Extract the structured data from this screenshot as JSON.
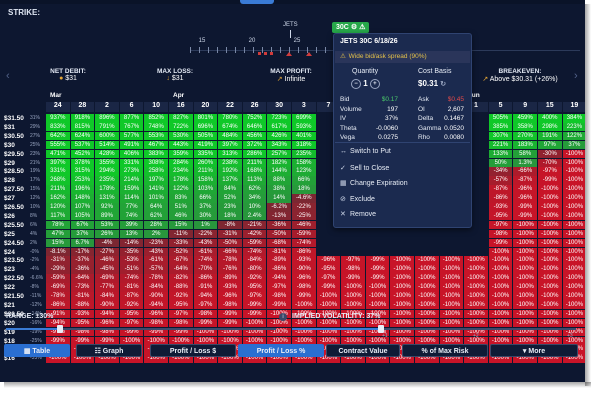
{
  "strike_label": "STRIKE:",
  "ticker": "JETS",
  "badge": "30C",
  "axis_ticks": [
    "15",
    "20",
    "25",
    "30",
    "35"
  ],
  "summary": {
    "net_debit": {
      "label": "NET DEBIT:",
      "value": "$31"
    },
    "max_loss": {
      "label": "MAX LOSS:",
      "value": "$31"
    },
    "max_profit": {
      "label": "MAX PROFIT:",
      "value": "Infinite"
    },
    "breakeven": {
      "label": "BREAKEVEN:",
      "value": "Above $30.31 (+26%)"
    }
  },
  "months": [
    {
      "name": "Mar",
      "col": 0
    },
    {
      "name": "Apr",
      "col": 5
    },
    {
      "name": "Jun",
      "col": 17
    }
  ],
  "days": [
    "24",
    "28",
    "2",
    "6",
    "10",
    "16",
    "20",
    "22",
    "26",
    "30",
    "3",
    "7",
    "11",
    "15",
    "19",
    "23",
    "27",
    "1",
    "5",
    "9",
    "15",
    "19"
  ],
  "rows": [
    {
      "price": "$31.50",
      "pct": "31%",
      "cells": [
        "937%",
        "918%",
        "896%",
        "877%",
        "852%",
        "827%",
        "801%",
        "780%",
        "752%",
        "723%",
        "699%",
        "",
        "",
        "",
        "",
        "",
        "",
        "",
        "505%",
        "459%",
        "400%",
        "384%"
      ]
    },
    {
      "price": "$31",
      "pct": "29%",
      "cells": [
        "833%",
        "815%",
        "791%",
        "767%",
        "748%",
        "722%",
        "696%",
        "674%",
        "646%",
        "617%",
        "593%",
        "",
        "",
        "",
        "",
        "",
        "",
        "",
        "385%",
        "358%",
        "298%",
        "223%"
      ]
    },
    {
      "price": "$30.50",
      "pct": "27%",
      "cells": [
        "642%",
        "624%",
        "600%",
        "577%",
        "553%",
        "530%",
        "505%",
        "484%",
        "456%",
        "426%",
        "401%",
        "",
        "",
        "",
        "",
        "",
        "",
        "",
        "307%",
        "270%",
        "191%",
        "122%"
      ]
    },
    {
      "price": "$30",
      "pct": "25%",
      "cells": [
        "555%",
        "537%",
        "514%",
        "491%",
        "467%",
        "443%",
        "419%",
        "397%",
        "372%",
        "343%",
        "318%",
        "",
        "",
        "",
        "",
        "",
        "",
        "",
        "221%",
        "183%",
        "97%",
        "37%"
      ]
    },
    {
      "price": "$29.50",
      "pct": "23%",
      "cells": [
        "471%",
        "452%",
        "428%",
        "406%",
        "383%",
        "359%",
        "335%",
        "313%",
        "286%",
        "257%",
        "235%",
        "",
        "",
        "",
        "",
        "",
        "",
        "",
        "133%",
        "58%",
        "-30%",
        "-100%"
      ]
    },
    {
      "price": "$29",
      "pct": "21%",
      "cells": [
        "397%",
        "378%",
        "355%",
        "331%",
        "308%",
        "284%",
        "260%",
        "238%",
        "211%",
        "182%",
        "158%",
        "",
        "",
        "",
        "",
        "",
        "",
        "",
        "50%",
        "1.3%",
        "-70%",
        "-100%"
      ]
    },
    {
      "price": "$28.50",
      "pct": "19%",
      "cells": [
        "331%",
        "315%",
        "294%",
        "273%",
        "258%",
        "234%",
        "211%",
        "192%",
        "168%",
        "144%",
        "123%",
        "",
        "",
        "",
        "",
        "",
        "",
        "",
        "-34%",
        "-66%",
        "-97%",
        "-100%"
      ]
    },
    {
      "price": "$28",
      "pct": "17%",
      "cells": [
        "268%",
        "253%",
        "235%",
        "214%",
        "197%",
        "178%",
        "158%",
        "137%",
        "113%",
        "88%",
        "66%",
        "",
        "",
        "",
        "",
        "",
        "",
        "",
        "-57%",
        "-87%",
        "-99%",
        "-100%"
      ]
    },
    {
      "price": "$27.50",
      "pct": "15%",
      "cells": [
        "211%",
        "196%",
        "178%",
        "159%",
        "141%",
        "122%",
        "103%",
        "84%",
        "62%",
        "38%",
        "18%",
        "",
        "",
        "",
        "",
        "",
        "",
        "",
        "-87%",
        "-96%",
        "-100%",
        "-100%"
      ]
    },
    {
      "price": "$27",
      "pct": "12%",
      "cells": [
        "162%",
        "148%",
        "131%",
        "114%",
        "101%",
        "83%",
        "66%",
        "52%",
        "34%",
        "14%",
        "-4.6%",
        "",
        "",
        "",
        "",
        "",
        "",
        "",
        "-86%",
        "-96%",
        "-100%",
        "-100%"
      ]
    },
    {
      "price": "$26.50",
      "pct": "10%",
      "cells": [
        "120%",
        "107%",
        "92%",
        "77%",
        "64%",
        "51%",
        "37%",
        "23%",
        "10%",
        "-6.2%",
        "-22%",
        "",
        "",
        "",
        "",
        "",
        "",
        "",
        "-93%",
        "-99%",
        "-100%",
        "-100%"
      ]
    },
    {
      "price": "$26",
      "pct": "8%",
      "cells": [
        "117%",
        "105%",
        "89%",
        "74%",
        "62%",
        "46%",
        "30%",
        "18%",
        "2.4%",
        "-13%",
        "-25%",
        "",
        "",
        "",
        "",
        "",
        "",
        "",
        "-95%",
        "-99%",
        "-100%",
        "-100%"
      ]
    },
    {
      "price": "$25.50",
      "pct": "6%",
      "cells": [
        "78%",
        "67%",
        "53%",
        "39%",
        "28%",
        "15%",
        "1%",
        "-8%",
        "-21%",
        "-36%",
        "-46%",
        "",
        "",
        "",
        "",
        "",
        "",
        "",
        "-97%",
        "-100%",
        "-100%",
        "-100%"
      ]
    },
    {
      "price": "$25",
      "pct": "4%",
      "cells": [
        "47%",
        "37%",
        "26%",
        "13%",
        "2%",
        "-11%",
        "-22%",
        "-31%",
        "-42%",
        "-50%",
        "-59%",
        "",
        "",
        "",
        "",
        "",
        "",
        "",
        "-98%",
        "-100%",
        "-100%",
        "-100%"
      ]
    },
    {
      "price": "$24.50",
      "pct": "2%",
      "cells": [
        "15%",
        "6.7%",
        "-4%",
        "-14%",
        "-23%",
        "-33%",
        "-43%",
        "-50%",
        "-59%",
        "-68%",
        "-74%",
        "",
        "",
        "",
        "",
        "",
        "",
        "",
        "-99%",
        "-100%",
        "-100%",
        "-100%"
      ]
    },
    {
      "price": "$24",
      "pct": "-0%",
      "cells": [
        "-8.1%",
        "-17%",
        "-27%",
        "-35%",
        "-43%",
        "-52%",
        "-61%",
        "-66%",
        "-74%",
        "-81%",
        "-86%",
        "",
        "",
        "",
        "",
        "",
        "",
        "",
        "-100%",
        "-100%",
        "-100%",
        "-100%"
      ]
    },
    {
      "price": "$23.50",
      "pct": "-2%",
      "cells": [
        "-31%",
        "-37%",
        "-46%",
        "-53%",
        "-61%",
        "-67%",
        "-74%",
        "-78%",
        "-84%",
        "-89%",
        "-93%",
        "-96%",
        "-97%",
        "-99%",
        "-100%",
        "-100%",
        "-100%",
        "-100%",
        "-100%",
        "-100%",
        "-100%",
        "-100%"
      ]
    },
    {
      "price": "$23",
      "pct": "-4%",
      "cells": [
        "-29%",
        "-36%",
        "-45%",
        "-51%",
        "-57%",
        "-64%",
        "-70%",
        "-76%",
        "-80%",
        "-86%",
        "-90%",
        "-95%",
        "-98%",
        "-99%",
        "-100%",
        "-100%",
        "-100%",
        "-100%",
        "-100%",
        "-100%",
        "-100%",
        "-100%"
      ]
    },
    {
      "price": "$22.50",
      "pct": "-6.6%",
      "cells": [
        "-59%",
        "-64%",
        "-69%",
        "-74%",
        "-78%",
        "-82%",
        "-86%",
        "-89%",
        "-92%",
        "-94%",
        "-96%",
        "-97%",
        "-99%",
        "-99%",
        "-100%",
        "-100%",
        "-100%",
        "-100%",
        "-100%",
        "-100%",
        "-100%",
        "-100%"
      ]
    },
    {
      "price": "$22",
      "pct": "-8%",
      "cells": [
        "-69%",
        "-73%",
        "-77%",
        "-81%",
        "-84%",
        "-88%",
        "-91%",
        "-93%",
        "-95%",
        "-97%",
        "-98%",
        "-99%",
        "-100%",
        "-100%",
        "-100%",
        "-100%",
        "-100%",
        "-100%",
        "-100%",
        "-100%",
        "-100%",
        "-100%"
      ]
    },
    {
      "price": "$21.50",
      "pct": "-11%",
      "cells": [
        "-78%",
        "-81%",
        "-84%",
        "-87%",
        "-90%",
        "-92%",
        "-94%",
        "-96%",
        "-97%",
        "-98%",
        "-99%",
        "-100%",
        "-100%",
        "-100%",
        "-100%",
        "-100%",
        "-100%",
        "-100%",
        "-100%",
        "-100%",
        "-100%",
        "-100%"
      ]
    },
    {
      "price": "$21",
      "pct": "-12%",
      "cells": [
        "-86%",
        "-88%",
        "-90%",
        "-92%",
        "-94%",
        "-95%",
        "-97%",
        "-98%",
        "-99%",
        "-99%",
        "-100%",
        "-100%",
        "-100%",
        "-100%",
        "-100%",
        "-100%",
        "-100%",
        "-100%",
        "-100%",
        "-100%",
        "-100%",
        "-100%"
      ]
    },
    {
      "price": "$20.50",
      "pct": "-14%",
      "cells": [
        "-91%",
        "-93%",
        "-94%",
        "-95%",
        "-96%",
        "-97%",
        "-98%",
        "-99%",
        "-99%",
        "-100%",
        "-100%",
        "-100%",
        "-100%",
        "-100%",
        "-100%",
        "-100%",
        "-100%",
        "-100%",
        "-100%",
        "-100%",
        "-100%",
        "-100%"
      ]
    },
    {
      "price": "$20",
      "pct": "-16%",
      "cells": [
        "-94%",
        "-95%",
        "-96%",
        "-97%",
        "-98%",
        "-98%",
        "-99%",
        "-99%",
        "-100%",
        "-100%",
        "-100%",
        "-100%",
        "-100%",
        "-100%",
        "-100%",
        "-100%",
        "-100%",
        "-100%",
        "-100%",
        "-100%",
        "-100%",
        "-100%"
      ]
    },
    {
      "price": "$19",
      "pct": "-19%",
      "cells": [
        "-97%",
        "-98%",
        "-98%",
        "-99%",
        "-99%",
        "-99%",
        "-100%",
        "-100%",
        "-100%",
        "-100%",
        "-100%",
        "-100%",
        "-100%",
        "-100%",
        "-100%",
        "-100%",
        "-100%",
        "-100%",
        "-100%",
        "-100%",
        "-100%",
        "-100%"
      ]
    },
    {
      "price": "$18",
      "pct": "-25%",
      "cells": [
        "-99%",
        "-99%",
        "-99%",
        "-100%",
        "-100%",
        "-100%",
        "-100%",
        "-100%",
        "-100%",
        "-100%",
        "-100%",
        "-100%",
        "-100%",
        "-100%",
        "-100%",
        "-100%",
        "-100%",
        "-100%",
        "-100%",
        "-100%",
        "-100%",
        "-100%"
      ]
    },
    {
      "price": "$17",
      "pct": "-29%",
      "cells": [
        "-100%",
        "-100%",
        "-100%",
        "-100%",
        "-100%",
        "-100%",
        "-100%",
        "-100%",
        "-100%",
        "-100%",
        "-100%",
        "-100%",
        "-100%",
        "-100%",
        "-100%",
        "-100%",
        "-100%",
        "-100%",
        "-100%",
        "-100%",
        "-100%",
        "-100%"
      ]
    },
    {
      "price": "$16",
      "pct": "-33%",
      "cells": [
        "-100%",
        "-100%",
        "-100%",
        "-100%",
        "-100%",
        "-100%",
        "-100%",
        "-100%",
        "-100%",
        "-100%",
        "-100%",
        "-100%",
        "-100%",
        "-100%",
        "-100%",
        "-100%",
        "-100%",
        "-100%",
        "-100%",
        "-100%",
        "-100%",
        "-100%"
      ]
    }
  ],
  "popup": {
    "title": "JETS 30C 6/18/26",
    "warning": "Wide bid/ask spread (90%)",
    "quantity_label": "Quantity",
    "quantity_value": "1",
    "cost_basis_label": "Cost Basis",
    "cost_basis_value": "$0.31",
    "greeks": [
      {
        "k1": "Bid",
        "v1": "$0.17",
        "k2": "Ask",
        "v2": "$0.45"
      },
      {
        "k1": "Volume",
        "v1": "197",
        "k2": "OI",
        "v2": "2,607"
      },
      {
        "k1": "IV",
        "v1": "37%",
        "k2": "Delta",
        "v2": "0.1467"
      },
      {
        "k1": "Theta",
        "v1": "-0.0060",
        "k2": "Gamma",
        "v2": "0.0520"
      },
      {
        "k1": "Vega",
        "v1": "0.0275",
        "k2": "Rho",
        "v2": "0.0080"
      }
    ],
    "menu": [
      {
        "icon": "↔",
        "label": "Switch to Put"
      },
      {
        "icon": "✓",
        "label": "Sell to Close"
      },
      {
        "icon": "▦",
        "label": "Change Expiration"
      },
      {
        "icon": "⊘",
        "label": "Exclude"
      },
      {
        "icon": "✕",
        "label": "Remove"
      }
    ]
  },
  "range": {
    "label": "RANGE: ±30%",
    "value_pct": 30
  },
  "iv": {
    "label": "IMPLIED VOLATILITY: 37%",
    "value_pct": 37,
    "ticks": [
      "",
      "+1",
      "+2",
      "+3"
    ]
  },
  "buttons": [
    {
      "label": "▦ Table",
      "active": true
    },
    {
      "label": "☷ Graph",
      "active": false
    },
    {
      "label": "Profit / Loss $",
      "active": false
    },
    {
      "label": "Profit / Loss %",
      "active": true
    },
    {
      "label": "Contract Value",
      "active": false
    },
    {
      "label": "% of Max Risk",
      "active": false
    },
    {
      "label": "▾ More",
      "active": false
    }
  ],
  "colors": {
    "bg": "#0d1730",
    "accent": "#2a6fd1",
    "profit": "#27b045",
    "loss": "#c41e2f"
  }
}
